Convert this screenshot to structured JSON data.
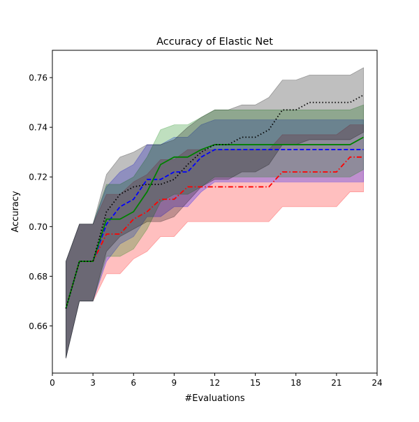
{
  "chart_data": {
    "type": "line",
    "title": "Accuracy of Elastic Net",
    "xlabel": "#Evaluations",
    "ylabel": "Accuracy",
    "xlim": [
      0,
      24
    ],
    "ylim": [
      0.641,
      0.771
    ],
    "xticks": [
      0,
      3,
      6,
      9,
      12,
      15,
      18,
      21,
      24
    ],
    "xtick_labels": [
      "0",
      "3",
      "6",
      "9",
      "12",
      "15",
      "18",
      "21",
      "24"
    ],
    "yticks": [
      0.66,
      0.68,
      0.7,
      0.72,
      0.74,
      0.76
    ],
    "ytick_labels": [
      "0.66",
      "0.68",
      "0.70",
      "0.72",
      "0.74",
      "0.76"
    ],
    "grid": false,
    "legend": "none",
    "x": [
      1,
      2,
      3,
      4,
      5,
      6,
      7,
      8,
      9,
      10,
      11,
      12,
      13,
      14,
      15,
      16,
      17,
      18,
      19,
      20,
      21,
      22,
      23
    ],
    "series": [
      {
        "color": "#ff0000",
        "linestyle": "dashdot",
        "values": [
          0.667,
          0.686,
          0.686,
          0.697,
          0.697,
          0.703,
          0.706,
          0.711,
          0.711,
          0.716,
          0.716,
          0.716,
          0.716,
          0.716,
          0.716,
          0.716,
          0.722,
          0.722,
          0.722,
          0.722,
          0.722,
          0.728,
          0.728
        ],
        "lower": [
          0.647,
          0.67,
          0.67,
          0.681,
          0.681,
          0.687,
          0.69,
          0.696,
          0.696,
          0.702,
          0.702,
          0.702,
          0.702,
          0.702,
          0.702,
          0.702,
          0.708,
          0.708,
          0.708,
          0.708,
          0.708,
          0.714,
          0.714
        ],
        "upper": [
          0.686,
          0.701,
          0.701,
          0.713,
          0.713,
          0.718,
          0.721,
          0.727,
          0.727,
          0.731,
          0.731,
          0.731,
          0.731,
          0.731,
          0.731,
          0.731,
          0.737,
          0.737,
          0.737,
          0.737,
          0.737,
          0.741,
          0.741
        ]
      },
      {
        "color": "#0000ff",
        "linestyle": "dashed",
        "values": [
          0.667,
          0.686,
          0.686,
          0.701,
          0.708,
          0.711,
          0.719,
          0.719,
          0.722,
          0.722,
          0.728,
          0.731,
          0.731,
          0.731,
          0.731,
          0.731,
          0.731,
          0.731,
          0.731,
          0.731,
          0.731,
          0.731,
          0.731
        ],
        "lower": [
          0.647,
          0.67,
          0.67,
          0.686,
          0.693,
          0.696,
          0.704,
          0.704,
          0.708,
          0.708,
          0.714,
          0.718,
          0.718,
          0.718,
          0.718,
          0.718,
          0.718,
          0.718,
          0.718,
          0.718,
          0.718,
          0.718,
          0.718
        ],
        "upper": [
          0.686,
          0.701,
          0.701,
          0.716,
          0.722,
          0.725,
          0.733,
          0.733,
          0.736,
          0.736,
          0.741,
          0.743,
          0.743,
          0.743,
          0.743,
          0.743,
          0.743,
          0.743,
          0.743,
          0.743,
          0.743,
          0.743,
          0.743
        ]
      },
      {
        "color": "#008000",
        "linestyle": "solid",
        "values": [
          0.667,
          0.686,
          0.686,
          0.703,
          0.703,
          0.706,
          0.714,
          0.725,
          0.728,
          0.728,
          0.731,
          0.733,
          0.733,
          0.733,
          0.733,
          0.733,
          0.733,
          0.733,
          0.733,
          0.733,
          0.733,
          0.733,
          0.736
        ],
        "lower": [
          0.647,
          0.67,
          0.67,
          0.688,
          0.688,
          0.691,
          0.699,
          0.71,
          0.713,
          0.713,
          0.716,
          0.72,
          0.72,
          0.72,
          0.72,
          0.72,
          0.72,
          0.72,
          0.72,
          0.72,
          0.72,
          0.72,
          0.723
        ],
        "upper": [
          0.686,
          0.701,
          0.701,
          0.717,
          0.717,
          0.72,
          0.728,
          0.739,
          0.741,
          0.741,
          0.744,
          0.747,
          0.747,
          0.747,
          0.747,
          0.747,
          0.747,
          0.747,
          0.747,
          0.747,
          0.747,
          0.747,
          0.749
        ]
      },
      {
        "color": "#000000",
        "linestyle": "dotted",
        "values": [
          0.667,
          0.686,
          0.686,
          0.706,
          0.713,
          0.716,
          0.717,
          0.717,
          0.719,
          0.725,
          0.73,
          0.733,
          0.733,
          0.736,
          0.736,
          0.739,
          0.747,
          0.747,
          0.75,
          0.75,
          0.75,
          0.75,
          0.753
        ],
        "lower": [
          0.647,
          0.67,
          0.67,
          0.69,
          0.696,
          0.699,
          0.702,
          0.702,
          0.704,
          0.71,
          0.716,
          0.719,
          0.719,
          0.722,
          0.722,
          0.725,
          0.733,
          0.733,
          0.735,
          0.735,
          0.735,
          0.735,
          0.738
        ],
        "upper": [
          0.686,
          0.701,
          0.701,
          0.721,
          0.728,
          0.73,
          0.733,
          0.733,
          0.735,
          0.74,
          0.744,
          0.747,
          0.747,
          0.749,
          0.749,
          0.752,
          0.759,
          0.759,
          0.761,
          0.761,
          0.761,
          0.761,
          0.764
        ]
      }
    ]
  }
}
